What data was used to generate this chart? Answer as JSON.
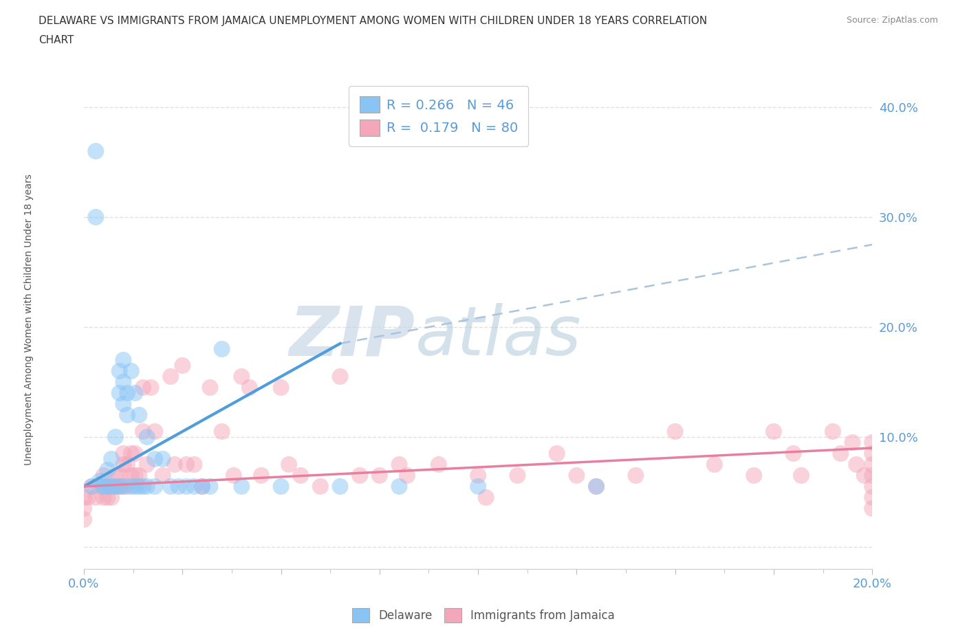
{
  "title_line1": "DELAWARE VS IMMIGRANTS FROM JAMAICA UNEMPLOYMENT AMONG WOMEN WITH CHILDREN UNDER 18 YEARS CORRELATION",
  "title_line2": "CHART",
  "source": "Source: ZipAtlas.com",
  "ylabel": "Unemployment Among Women with Children Under 18 years",
  "xlim": [
    0.0,
    0.2
  ],
  "ylim": [
    -0.02,
    0.43
  ],
  "yticks": [
    0.0,
    0.1,
    0.2,
    0.3,
    0.4
  ],
  "ytick_labels": [
    "",
    "10.0%",
    "20.0%",
    "30.0%",
    "40.0%"
  ],
  "xtick_vals": [
    0.0,
    0.025,
    0.05,
    0.075,
    0.1,
    0.125,
    0.15,
    0.175,
    0.2
  ],
  "xtick_labels": [
    "0.0%",
    "",
    "",
    "",
    "",
    "",
    "",
    "",
    "20.0%"
  ],
  "legend_label1": "R = 0.266   N = 46",
  "legend_label2": "R =  0.179   N = 80",
  "color_delaware": "#89c4f4",
  "color_jamaica": "#f4a7bb",
  "color_delaware_line": "#4f9ddb",
  "color_jamaica_line": "#e87fa0",
  "color_dashed": "#aac4dd",
  "background_color": "#ffffff",
  "grid_color": "#e0e0e0",
  "axis_color": "#5b9bd5",
  "text_color": "#333333",
  "source_color": "#888888",
  "delaware_x": [
    0.002,
    0.003,
    0.003,
    0.004,
    0.005,
    0.005,
    0.006,
    0.006,
    0.007,
    0.007,
    0.008,
    0.008,
    0.009,
    0.009,
    0.009,
    0.01,
    0.01,
    0.01,
    0.01,
    0.011,
    0.011,
    0.012,
    0.012,
    0.013,
    0.013,
    0.014,
    0.014,
    0.015,
    0.016,
    0.016,
    0.018,
    0.018,
    0.02,
    0.022,
    0.024,
    0.026,
    0.028,
    0.03,
    0.032,
    0.035,
    0.04,
    0.05,
    0.065,
    0.08,
    0.1,
    0.13
  ],
  "delaware_y": [
    0.055,
    0.36,
    0.3,
    0.06,
    0.055,
    0.055,
    0.07,
    0.055,
    0.08,
    0.055,
    0.1,
    0.055,
    0.16,
    0.14,
    0.055,
    0.17,
    0.15,
    0.13,
    0.055,
    0.14,
    0.12,
    0.16,
    0.055,
    0.14,
    0.055,
    0.12,
    0.055,
    0.055,
    0.1,
    0.055,
    0.08,
    0.055,
    0.08,
    0.055,
    0.055,
    0.055,
    0.055,
    0.055,
    0.055,
    0.18,
    0.055,
    0.055,
    0.055,
    0.055,
    0.055,
    0.055
  ],
  "jamaica_x": [
    0.0,
    0.0,
    0.0,
    0.001,
    0.002,
    0.003,
    0.004,
    0.005,
    0.005,
    0.006,
    0.006,
    0.007,
    0.007,
    0.008,
    0.008,
    0.009,
    0.009,
    0.01,
    0.01,
    0.01,
    0.011,
    0.011,
    0.012,
    0.012,
    0.013,
    0.013,
    0.014,
    0.015,
    0.015,
    0.016,
    0.017,
    0.018,
    0.02,
    0.022,
    0.023,
    0.025,
    0.026,
    0.028,
    0.03,
    0.032,
    0.035,
    0.038,
    0.04,
    0.042,
    0.045,
    0.05,
    0.052,
    0.055,
    0.06,
    0.065,
    0.07,
    0.075,
    0.08,
    0.082,
    0.09,
    0.1,
    0.102,
    0.11,
    0.12,
    0.125,
    0.13,
    0.14,
    0.15,
    0.16,
    0.17,
    0.175,
    0.18,
    0.182,
    0.19,
    0.192,
    0.195,
    0.196,
    0.198,
    0.2,
    0.2,
    0.2,
    0.2,
    0.2,
    0.2,
    0.2
  ],
  "jamaica_y": [
    0.045,
    0.035,
    0.025,
    0.045,
    0.055,
    0.045,
    0.055,
    0.065,
    0.045,
    0.045,
    0.055,
    0.055,
    0.045,
    0.065,
    0.055,
    0.065,
    0.055,
    0.085,
    0.075,
    0.055,
    0.075,
    0.055,
    0.085,
    0.065,
    0.085,
    0.065,
    0.065,
    0.145,
    0.105,
    0.075,
    0.145,
    0.105,
    0.065,
    0.155,
    0.075,
    0.165,
    0.075,
    0.075,
    0.055,
    0.145,
    0.105,
    0.065,
    0.155,
    0.145,
    0.065,
    0.145,
    0.075,
    0.065,
    0.055,
    0.155,
    0.065,
    0.065,
    0.075,
    0.065,
    0.075,
    0.065,
    0.045,
    0.065,
    0.085,
    0.065,
    0.055,
    0.065,
    0.105,
    0.075,
    0.065,
    0.105,
    0.085,
    0.065,
    0.105,
    0.085,
    0.095,
    0.075,
    0.065,
    0.095,
    0.085,
    0.075,
    0.065,
    0.055,
    0.045,
    0.035
  ],
  "blue_line_x0": 0.0,
  "blue_line_y0": 0.055,
  "blue_line_x1": 0.065,
  "blue_line_y1": 0.185,
  "dashed_line_x0": 0.065,
  "dashed_line_y0": 0.185,
  "dashed_line_x1": 0.2,
  "dashed_line_y1": 0.275,
  "pink_line_x0": 0.0,
  "pink_line_y0": 0.055,
  "pink_line_x1": 0.2,
  "pink_line_y1": 0.09,
  "watermark_zip_color": "#c8d8e8",
  "watermark_atlas_color": "#a8c4d8"
}
